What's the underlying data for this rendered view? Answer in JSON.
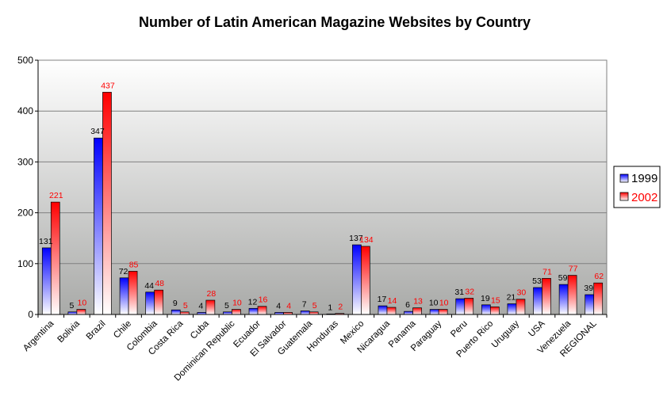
{
  "chart_data": {
    "type": "bar",
    "title": "Number of Latin American Magazine Websites by Country",
    "xlabel": "",
    "ylabel": "",
    "ylim": [
      0,
      500
    ],
    "yticks": [
      0,
      100,
      200,
      300,
      400,
      500
    ],
    "grid": true,
    "legend_position": "right",
    "categories": [
      "Argentina",
      "Bolivia",
      "Brazil",
      "Chile",
      "Colombia",
      "Costa Rica",
      "Cuba",
      "Dominican Republic",
      "Ecuador",
      "El Salvador",
      "Guatemala",
      "Honduras",
      "Mexico",
      "Nicaragua",
      "Panama",
      "Paraguay",
      "Peru",
      "Puerto Rico",
      "Uruguay",
      "USA",
      "Venezuela",
      "REGIONAL"
    ],
    "series": [
      {
        "name": "1999",
        "color": "#0000ff",
        "label_color": "#000000",
        "values": [
          131,
          5,
          347,
          72,
          44,
          9,
          4,
          5,
          12,
          4,
          7,
          1,
          137,
          17,
          6,
          10,
          31,
          19,
          21,
          53,
          59,
          39
        ]
      },
      {
        "name": "2002",
        "color": "#ff0000",
        "label_color": "#ff0000",
        "values": [
          221,
          10,
          437,
          85,
          48,
          5,
          28,
          10,
          16,
          4,
          5,
          2,
          134,
          14,
          13,
          10,
          32,
          15,
          30,
          71,
          77,
          62
        ]
      }
    ]
  }
}
